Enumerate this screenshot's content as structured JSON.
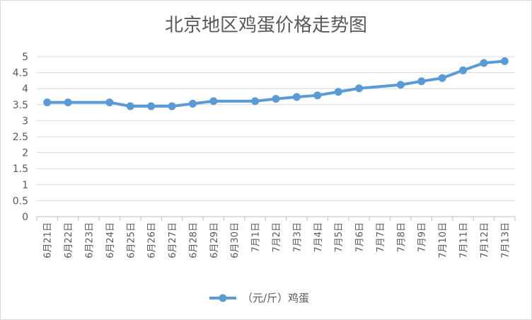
{
  "chart_data": {
    "type": "line",
    "title": "北京地区鸡蛋价格走势图",
    "xlabel": "",
    "ylabel": "",
    "categories": [
      "6月21日",
      "6月22日",
      "6月23日",
      "6月24日",
      "6月25日",
      "6月26日",
      "6月27日",
      "6月28日",
      "6月29日",
      "6月30日",
      "7月1日",
      "7月2日",
      "7月3日",
      "7月4日",
      "7月5日",
      "7月6日",
      "7月7日",
      "7月8日",
      "7月9日",
      "7月10日",
      "7月11日",
      "7月12日",
      "7月13日"
    ],
    "series": [
      {
        "name": "（元/斤）鸡蛋",
        "values": [
          3.57,
          3.57,
          null,
          3.57,
          3.45,
          3.45,
          3.45,
          3.53,
          3.61,
          null,
          3.61,
          3.68,
          3.74,
          3.79,
          3.9,
          4.01,
          null,
          4.12,
          4.23,
          4.33,
          4.57,
          4.8,
          4.86
        ]
      }
    ],
    "ylim": [
      0,
      5
    ],
    "yticks": [
      "0",
      "0.5",
      "1",
      "1.5",
      "2",
      "2.5",
      "3",
      "3.5",
      "4",
      "4.5",
      "5"
    ],
    "grid": true,
    "legend_position": "bottom",
    "colors": {
      "line": "#5b9bd5",
      "grid": "#d9d9d9",
      "text": "#595959"
    }
  }
}
